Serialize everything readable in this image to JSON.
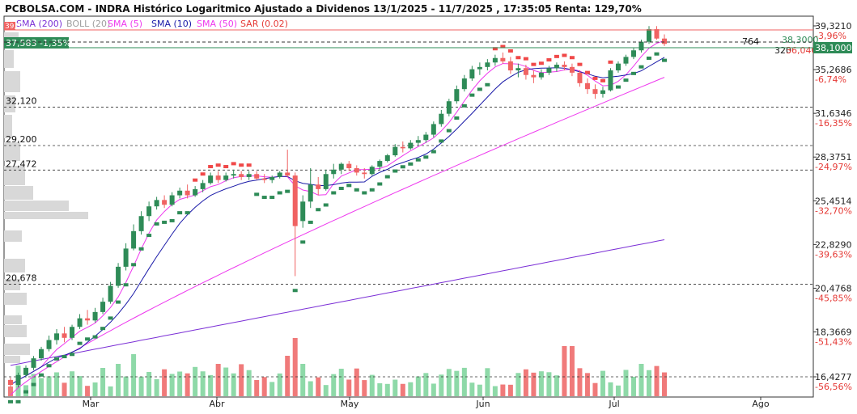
{
  "header": {
    "title": "PCBOLSA.COM - INDRA Histórico Logaritmico Ajustado a Dividenos 13/1/2025 - 11/7/2025 , 17:35:05 Renta: 129,70%"
  },
  "legend": [
    {
      "label": "SMA (200)",
      "color": "#7b2fd6"
    },
    {
      "label": "BOLL (20)",
      "color": "#9e9e9e"
    },
    {
      "label": "SMA (5)",
      "color": "#ee38ee"
    },
    {
      "label": "SMA (10)",
      "color": "#1a1aa8"
    },
    {
      "label": "SMA (50)",
      "color": "#ee38ee"
    },
    {
      "label": "SAR (0.02)",
      "color": "#e53935"
    }
  ],
  "tags": {
    "upper_value": "39,32",
    "current_label": "37,583 -1,35%",
    "right_top": "38,3000",
    "right_current": "38,1000",
    "level_764": "764",
    "level_320": "320",
    "right_red": "36,0400"
  },
  "colors": {
    "up": "#2e8b57",
    "down": "#f06262",
    "vol_up": "#8ed9a8",
    "vol_down": "#f07a7a",
    "sar_up": "#2e8b57",
    "sar_down": "#f04848",
    "sma200": "#7b2fd6",
    "sma50": "#ee38ee",
    "sma5": "#ee38ee",
    "sma10": "#1a1aa8",
    "grid_dash": "#333333",
    "tag_green": "#2e8b57",
    "tag_red": "#f06262"
  },
  "chart_data": {
    "type": "candlestick",
    "scale": "log",
    "y_ticks": [
      {
        "value": "39,3210",
        "pct": "-3,96%"
      },
      {
        "value": "35,2686",
        "pct": "-6,74%"
      },
      {
        "value": "31,6346",
        "pct": "-16,35%"
      },
      {
        "value": "28,3751",
        "pct": "-24,97%"
      },
      {
        "value": "25,4514",
        "pct": "-32,70%"
      },
      {
        "value": "22,8290",
        "pct": "-39,63%"
      },
      {
        "value": "20,4768",
        "pct": "-45,85%"
      },
      {
        "value": "18,3669",
        "pct": "-51,43%"
      },
      {
        "value": "16,4277",
        "pct": "-56,56%"
      }
    ],
    "levels": [
      "32,120",
      "29,200",
      "27,472",
      "20,678"
    ],
    "months": [
      "Mar",
      "Abr",
      "May",
      "Jun",
      "Jul",
      "Ago"
    ],
    "candles": [
      [
        16.3,
        16.4,
        16.0,
        16.1
      ],
      [
        16.1,
        16.6,
        16.0,
        16.5
      ],
      [
        16.5,
        16.9,
        16.4,
        16.8
      ],
      [
        16.8,
        17.3,
        16.7,
        17.2
      ],
      [
        17.2,
        17.7,
        17.1,
        17.6
      ],
      [
        17.6,
        18.2,
        17.5,
        18.0
      ],
      [
        18.0,
        18.5,
        17.8,
        18.3
      ],
      [
        18.3,
        18.6,
        17.9,
        18.1
      ],
      [
        18.1,
        18.7,
        18.0,
        18.6
      ],
      [
        18.6,
        19.2,
        18.5,
        19.0
      ],
      [
        19.0,
        19.4,
        18.7,
        18.9
      ],
      [
        18.9,
        19.5,
        18.8,
        19.3
      ],
      [
        19.3,
        20.0,
        19.2,
        19.8
      ],
      [
        19.8,
        20.8,
        19.7,
        20.6
      ],
      [
        20.6,
        21.8,
        20.5,
        21.6
      ],
      [
        21.6,
        22.9,
        21.4,
        22.6
      ],
      [
        22.6,
        24.0,
        22.5,
        23.6
      ],
      [
        23.6,
        24.8,
        23.4,
        24.5
      ],
      [
        24.5,
        25.4,
        24.2,
        25.1
      ],
      [
        25.1,
        25.7,
        24.9,
        25.5
      ],
      [
        25.5,
        25.8,
        25.0,
        25.2
      ],
      [
        25.2,
        26.0,
        25.1,
        25.8
      ],
      [
        25.8,
        26.3,
        25.6,
        26.1
      ],
      [
        26.1,
        26.5,
        25.6,
        25.8
      ],
      [
        25.8,
        26.4,
        25.7,
        26.2
      ],
      [
        26.2,
        26.8,
        26.0,
        26.6
      ],
      [
        26.6,
        27.3,
        26.5,
        27.1
      ],
      [
        27.1,
        27.4,
        26.6,
        26.8
      ],
      [
        26.8,
        27.3,
        26.7,
        27.1
      ],
      [
        27.1,
        27.5,
        26.9,
        27.2
      ],
      [
        27.2,
        27.4,
        26.8,
        27.0
      ],
      [
        27.0,
        27.4,
        26.8,
        27.2
      ],
      [
        27.2,
        27.4,
        26.8,
        26.9
      ],
      [
        26.9,
        27.2,
        26.6,
        26.8
      ],
      [
        26.8,
        27.1,
        26.6,
        27.0
      ],
      [
        27.0,
        27.4,
        26.9,
        27.3
      ],
      [
        27.3,
        28.9,
        27.0,
        27.1
      ],
      [
        27.1,
        27.3,
        21.1,
        23.9
      ],
      [
        24.2,
        25.8,
        23.8,
        25.4
      ],
      [
        25.4,
        27.6,
        25.0,
        26.5
      ],
      [
        26.5,
        27.0,
        25.8,
        26.2
      ],
      [
        26.2,
        27.5,
        26.1,
        27.2
      ],
      [
        27.2,
        27.9,
        26.9,
        27.5
      ],
      [
        27.5,
        28.0,
        27.2,
        27.9
      ],
      [
        27.9,
        28.1,
        27.4,
        27.6
      ],
      [
        27.6,
        27.8,
        27.1,
        27.3
      ],
      [
        27.3,
        27.6,
        26.9,
        27.2
      ],
      [
        27.2,
        27.8,
        27.1,
        27.7
      ],
      [
        27.7,
        28.2,
        27.5,
        28.1
      ],
      [
        28.1,
        28.6,
        28.0,
        28.5
      ],
      [
        28.5,
        29.3,
        28.4,
        29.1
      ],
      [
        29.1,
        29.5,
        28.7,
        29.0
      ],
      [
        29.0,
        29.6,
        28.9,
        29.4
      ],
      [
        29.4,
        29.9,
        29.2,
        29.6
      ],
      [
        29.6,
        30.2,
        29.4,
        30.0
      ],
      [
        30.0,
        31.0,
        29.8,
        30.8
      ],
      [
        30.8,
        31.9,
        30.6,
        31.6
      ],
      [
        31.6,
        32.8,
        31.4,
        32.6
      ],
      [
        32.6,
        33.9,
        32.4,
        33.6
      ],
      [
        33.6,
        34.8,
        33.4,
        34.5
      ],
      [
        34.5,
        35.6,
        34.3,
        35.3
      ],
      [
        35.3,
        35.9,
        34.8,
        35.5
      ],
      [
        35.5,
        36.2,
        35.2,
        35.9
      ],
      [
        35.9,
        36.6,
        35.6,
        36.3
      ],
      [
        36.3,
        36.8,
        35.8,
        36.0
      ],
      [
        36.0,
        36.4,
        34.9,
        35.2
      ],
      [
        35.2,
        35.8,
        34.6,
        35.4
      ],
      [
        35.4,
        35.7,
        34.4,
        34.8
      ],
      [
        34.8,
        35.2,
        34.1,
        34.6
      ],
      [
        34.6,
        35.3,
        34.4,
        35.0
      ],
      [
        35.0,
        35.6,
        34.8,
        35.4
      ],
      [
        35.4,
        35.9,
        35.1,
        35.7
      ],
      [
        35.7,
        36.0,
        35.2,
        35.5
      ],
      [
        35.5,
        35.8,
        34.7,
        35.0
      ],
      [
        35.0,
        35.2,
        33.8,
        34.1
      ],
      [
        34.1,
        34.5,
        33.2,
        33.6
      ],
      [
        33.6,
        34.0,
        32.8,
        33.2
      ],
      [
        33.2,
        33.8,
        32.9,
        33.5
      ],
      [
        33.5,
        35.4,
        33.4,
        35.2
      ],
      [
        35.2,
        36.0,
        35.0,
        35.8
      ],
      [
        35.8,
        36.6,
        35.6,
        36.4
      ],
      [
        36.4,
        37.2,
        36.2,
        37.0
      ],
      [
        37.0,
        38.0,
        36.8,
        37.8
      ],
      [
        37.8,
        39.3,
        37.6,
        39.0
      ],
      [
        39.0,
        39.3,
        38.0,
        38.1
      ],
      [
        38.1,
        38.5,
        37.4,
        37.6
      ]
    ]
  }
}
